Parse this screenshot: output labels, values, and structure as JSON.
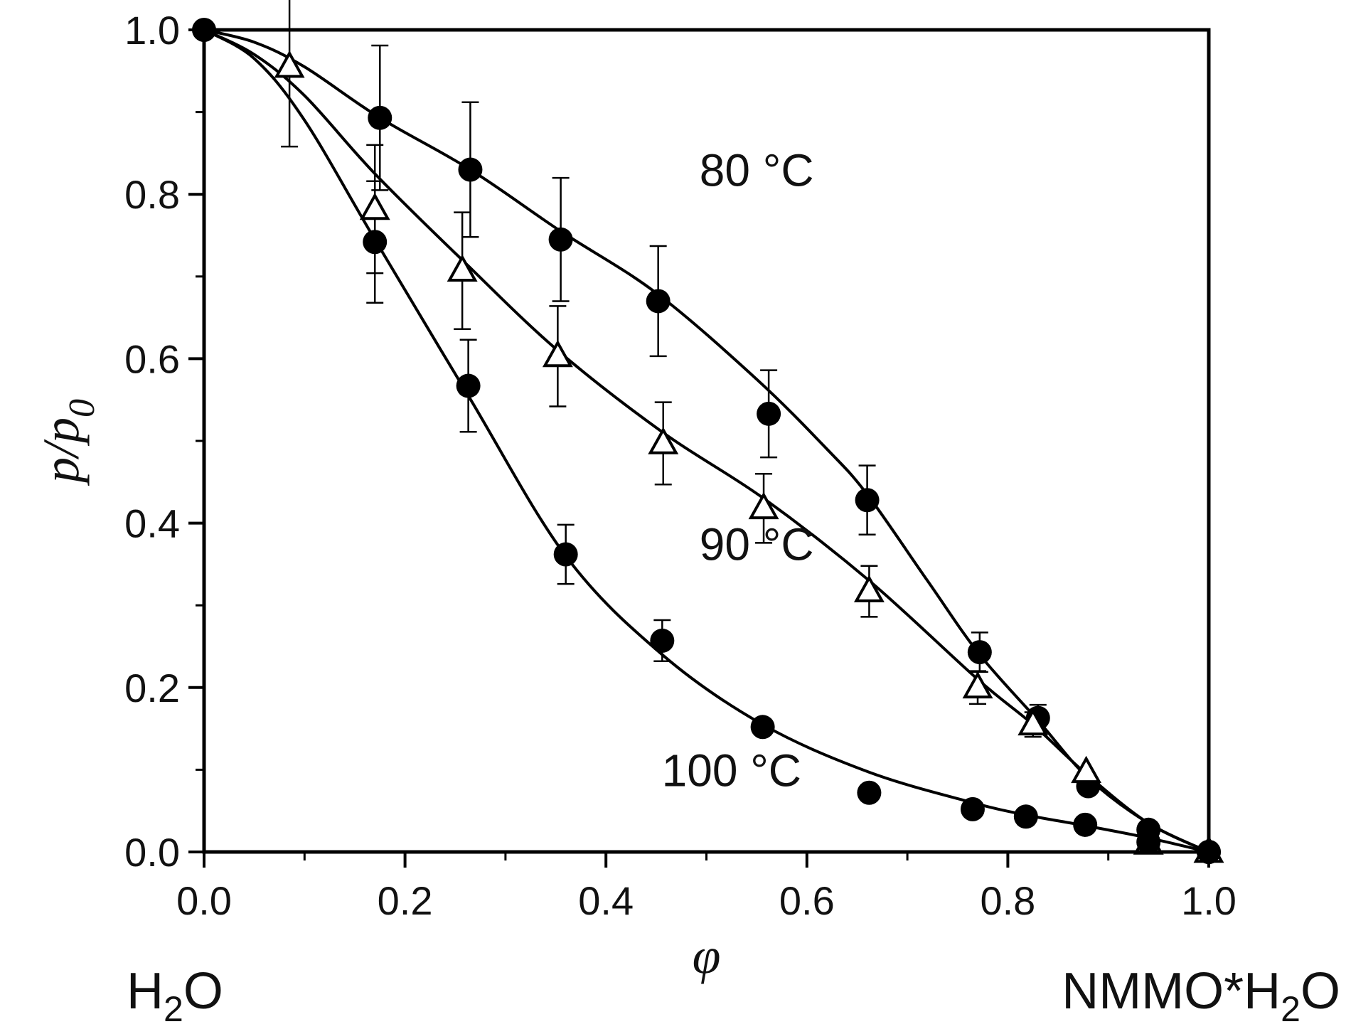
{
  "chart_data": {
    "type": "scatter",
    "xlabel": "φ",
    "ylabel_main": "p/p",
    "ylabel_sub": "0",
    "xlim": [
      0.0,
      1.0
    ],
    "ylim": [
      0.0,
      1.0
    ],
    "xticks": [
      0.0,
      0.2,
      0.4,
      0.6,
      0.8,
      1.0
    ],
    "xtick_labels": [
      "0.0",
      "0.2",
      "0.4",
      "0.6",
      "0.8",
      "1.0"
    ],
    "yticks": [
      0.0,
      0.2,
      0.4,
      0.6,
      0.8,
      1.0
    ],
    "ytick_labels": [
      "0.0",
      "0.2",
      "0.4",
      "0.6",
      "0.8",
      "1.0"
    ],
    "grid": false,
    "series": [
      {
        "name": "80 °C",
        "marker": "filled-circle",
        "points": [
          {
            "x": 0.0,
            "y": 1.0
          },
          {
            "x": 0.175,
            "y": 0.893,
            "err": 0.088
          },
          {
            "x": 0.265,
            "y": 0.83,
            "err": 0.082
          },
          {
            "x": 0.355,
            "y": 0.745,
            "err": 0.075
          },
          {
            "x": 0.452,
            "y": 0.67,
            "err": 0.067
          },
          {
            "x": 0.562,
            "y": 0.533,
            "err": 0.053
          },
          {
            "x": 0.66,
            "y": 0.428,
            "err": 0.042
          },
          {
            "x": 0.772,
            "y": 0.243,
            "err": 0.024
          },
          {
            "x": 0.83,
            "y": 0.163,
            "err": 0.016
          },
          {
            "x": 0.88,
            "y": 0.08
          },
          {
            "x": 0.94,
            "y": 0.027
          },
          {
            "x": 1.0,
            "y": 0.0
          }
        ],
        "fit": [
          [
            0.0,
            1.0
          ],
          [
            0.05,
            0.985
          ],
          [
            0.1,
            0.955
          ],
          [
            0.175,
            0.893
          ],
          [
            0.265,
            0.83
          ],
          [
            0.355,
            0.755
          ],
          [
            0.45,
            0.68
          ],
          [
            0.55,
            0.575
          ],
          [
            0.62,
            0.49
          ],
          [
            0.66,
            0.435
          ],
          [
            0.72,
            0.33
          ],
          [
            0.772,
            0.24
          ],
          [
            0.83,
            0.16
          ],
          [
            0.88,
            0.09
          ],
          [
            0.94,
            0.035
          ],
          [
            1.0,
            0.0
          ]
        ]
      },
      {
        "name": "90 °C",
        "marker": "open-triangle",
        "points": [
          {
            "x": 0.085,
            "y": 0.955,
            "err": 0.097
          },
          {
            "x": 0.17,
            "y": 0.782,
            "err": 0.078
          },
          {
            "x": 0.257,
            "y": 0.707,
            "err": 0.071
          },
          {
            "x": 0.352,
            "y": 0.603,
            "err": 0.061
          },
          {
            "x": 0.457,
            "y": 0.497,
            "err": 0.05
          },
          {
            "x": 0.557,
            "y": 0.418,
            "err": 0.042
          },
          {
            "x": 0.662,
            "y": 0.317,
            "err": 0.031
          },
          {
            "x": 0.77,
            "y": 0.2,
            "err": 0.02
          },
          {
            "x": 0.825,
            "y": 0.155,
            "err": 0.015
          },
          {
            "x": 0.878,
            "y": 0.097
          },
          {
            "x": 0.94,
            "y": 0.01
          },
          {
            "x": 1.0,
            "y": 0.0
          }
        ],
        "fit": [
          [
            0.0,
            1.0
          ],
          [
            0.05,
            0.97
          ],
          [
            0.1,
            0.92
          ],
          [
            0.17,
            0.825
          ],
          [
            0.257,
            0.72
          ],
          [
            0.352,
            0.61
          ],
          [
            0.457,
            0.51
          ],
          [
            0.557,
            0.43
          ],
          [
            0.662,
            0.33
          ],
          [
            0.77,
            0.21
          ],
          [
            0.825,
            0.155
          ],
          [
            0.878,
            0.095
          ],
          [
            0.94,
            0.035
          ],
          [
            1.0,
            0.0
          ]
        ]
      },
      {
        "name": "100 °C",
        "marker": "filled-circle",
        "points": [
          {
            "x": 0.17,
            "y": 0.742,
            "err": 0.074
          },
          {
            "x": 0.263,
            "y": 0.567,
            "err": 0.056
          },
          {
            "x": 0.36,
            "y": 0.362,
            "err": 0.036
          },
          {
            "x": 0.456,
            "y": 0.257,
            "err": 0.025
          },
          {
            "x": 0.556,
            "y": 0.152
          },
          {
            "x": 0.662,
            "y": 0.072
          },
          {
            "x": 0.765,
            "y": 0.052
          },
          {
            "x": 0.818,
            "y": 0.043
          },
          {
            "x": 0.877,
            "y": 0.033
          },
          {
            "x": 0.94,
            "y": 0.012
          },
          {
            "x": 1.0,
            "y": 0.0
          }
        ],
        "fit": [
          [
            0.0,
            1.0
          ],
          [
            0.05,
            0.965
          ],
          [
            0.1,
            0.89
          ],
          [
            0.17,
            0.745
          ],
          [
            0.263,
            0.555
          ],
          [
            0.36,
            0.36
          ],
          [
            0.456,
            0.24
          ],
          [
            0.556,
            0.155
          ],
          [
            0.662,
            0.097
          ],
          [
            0.765,
            0.06
          ],
          [
            0.818,
            0.045
          ],
          [
            0.877,
            0.032
          ],
          [
            0.94,
            0.017
          ],
          [
            1.0,
            0.0
          ]
        ]
      }
    ],
    "annotations": [
      {
        "text": "80 °C",
        "x": 0.55,
        "y": 0.81
      },
      {
        "text": "90 °C",
        "x": 0.55,
        "y": 0.355
      },
      {
        "text": "100 °C",
        "x": 0.525,
        "y": 0.08
      }
    ],
    "end_labels": {
      "left_main": "H",
      "left_sub": "2",
      "left_rest": "O",
      "right_main": "NMMO*H",
      "right_sub": "2",
      "right_rest": "O"
    }
  }
}
